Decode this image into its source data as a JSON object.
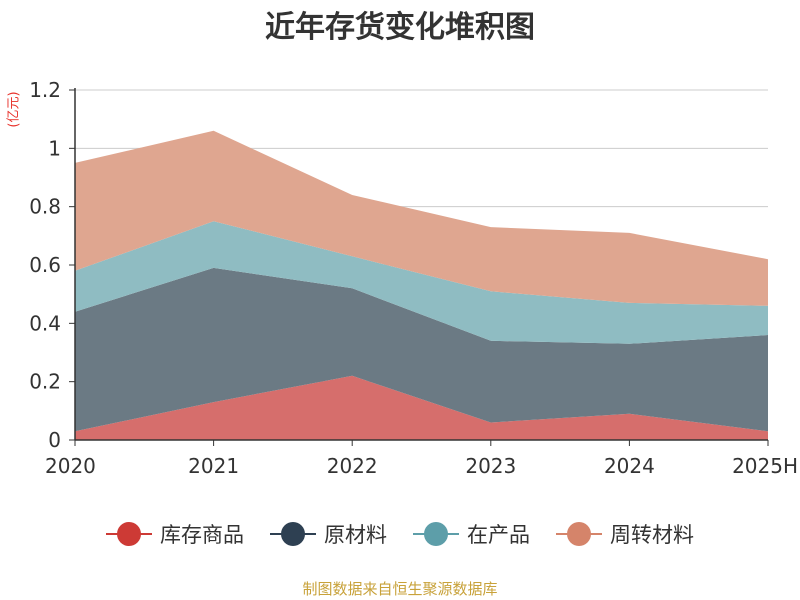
{
  "chart_data": {
    "type": "area",
    "stacked": true,
    "title": "近年存货变化堆积图",
    "unit": "(亿元)",
    "categories": [
      "2020",
      "2021",
      "2022",
      "2023",
      "2024",
      "2025H"
    ],
    "yticks": [
      "0",
      "0.2",
      "0.4",
      "0.6",
      "0.8",
      "1",
      "1.2"
    ],
    "ylim": [
      0,
      1.2
    ],
    "grid": true,
    "legend_position": "bottom",
    "series": [
      {
        "name": "库存商品",
        "values": [
          0.03,
          0.13,
          0.22,
          0.06,
          0.09,
          0.03
        ],
        "color": "#cd3a35",
        "area_color": "#d66e6c"
      },
      {
        "name": "原材料",
        "values": [
          0.41,
          0.46,
          0.3,
          0.28,
          0.24,
          0.33
        ],
        "color": "#2e4052",
        "area_color": "#6b7a84"
      },
      {
        "name": "在产品",
        "values": [
          0.14,
          0.16,
          0.11,
          0.17,
          0.14,
          0.1
        ],
        "color": "#5d9ea9",
        "area_color": "#8fbcc2"
      },
      {
        "name": "周转材料",
        "values": [
          0.37,
          0.31,
          0.21,
          0.22,
          0.24,
          0.16
        ],
        "color": "#d5846a",
        "area_color": "#dfa690"
      }
    ]
  },
  "source_text": "制图数据来自恒生聚源数据库"
}
